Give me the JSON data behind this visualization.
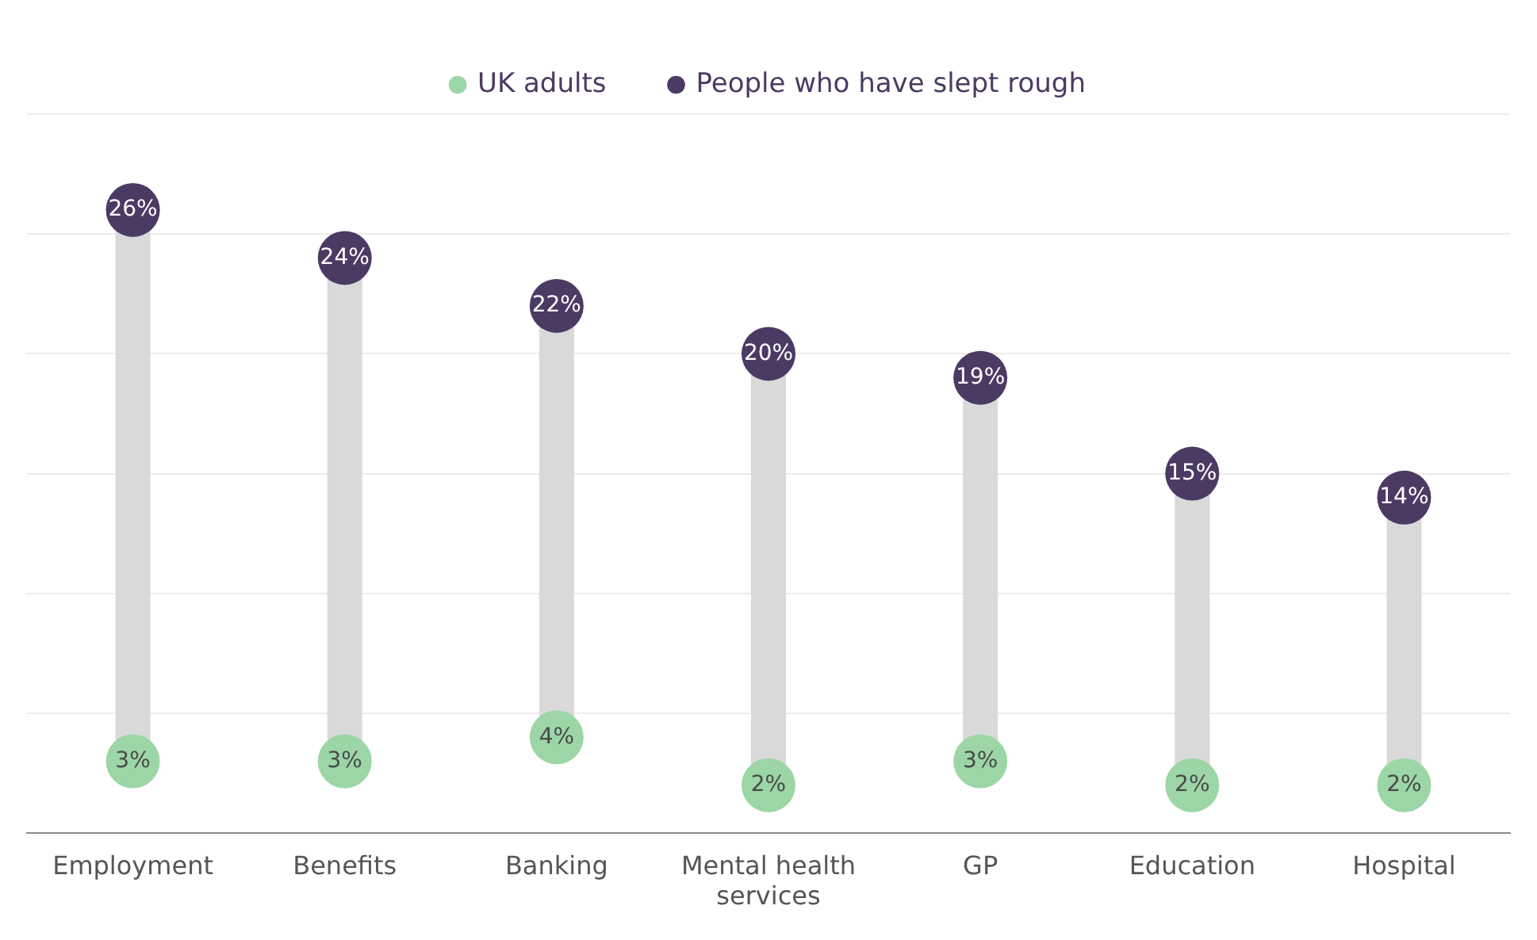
{
  "chart_data": {
    "type": "scatter",
    "categories": [
      "Employment",
      "Benefits",
      "Banking",
      "Mental health services",
      "GP",
      "Education",
      "Hospital"
    ],
    "series": [
      {
        "name": "UK adults",
        "color": "#9cd6a6",
        "values": [
          3,
          3,
          4,
          2,
          3,
          2,
          2
        ],
        "value_labels": [
          "3%",
          "3%",
          "4%",
          "2%",
          "3%",
          "2%",
          "2%"
        ]
      },
      {
        "name": "People who have slept rough",
        "color": "#4b3a63",
        "values": [
          26,
          24,
          22,
          20,
          19,
          15,
          14
        ],
        "value_labels": [
          "26%",
          "24%",
          "22%",
          "20%",
          "19%",
          "15%",
          "14%"
        ]
      }
    ],
    "ylim": [
      0,
      30
    ],
    "yticks": [
      0,
      5,
      10,
      15,
      20,
      25,
      30
    ],
    "tick_labels": "x",
    "grid": "y",
    "legend": "top",
    "marker": "circle"
  }
}
